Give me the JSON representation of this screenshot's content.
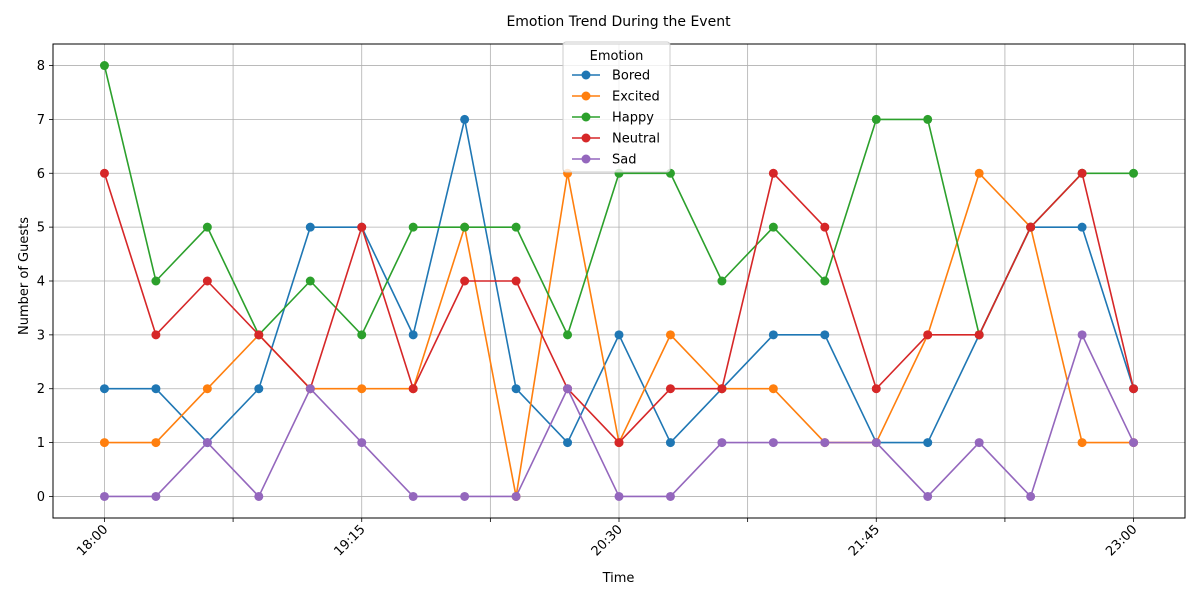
{
  "chart_data": {
    "type": "line",
    "title": "Emotion Trend During the Event",
    "xlabel": "Time",
    "ylabel": "Number of Guests",
    "x": [
      "18:00",
      "18:15",
      "18:30",
      "18:45",
      "19:00",
      "19:15",
      "19:30",
      "19:45",
      "20:00",
      "20:15",
      "20:30",
      "20:45",
      "21:00",
      "21:15",
      "21:30",
      "21:45",
      "22:00",
      "22:15",
      "22:30",
      "22:45",
      "23:00"
    ],
    "x_tick_labels": [
      "18:00",
      "",
      "19:15",
      "",
      "20:30",
      "",
      "21:45",
      "",
      "23:00"
    ],
    "x_tick_positions": [
      "18:00",
      "18:37.5",
      "19:15",
      "19:52.5",
      "20:30",
      "21:07.5",
      "21:45",
      "22:22.5",
      "23:00"
    ],
    "y_ticks": [
      0,
      1,
      2,
      3,
      4,
      5,
      6,
      7,
      8
    ],
    "ylim": [
      -0.4,
      8.4
    ],
    "grid": true,
    "legend_title": "Emotion",
    "legend_position": "top-center",
    "series": [
      {
        "name": "Bored",
        "color": "#1f77b4",
        "values": [
          2,
          2,
          1,
          2,
          5,
          5,
          3,
          7,
          2,
          1,
          3,
          1,
          2,
          3,
          3,
          1,
          1,
          3,
          5,
          5,
          2
        ]
      },
      {
        "name": "Excited",
        "color": "#ff7f0e",
        "values": [
          1,
          1,
          2,
          3,
          2,
          2,
          2,
          5,
          0,
          6,
          1,
          3,
          2,
          2,
          1,
          1,
          3,
          6,
          5,
          1,
          1
        ]
      },
      {
        "name": "Happy",
        "color": "#2ca02c",
        "values": [
          8,
          4,
          5,
          3,
          4,
          3,
          5,
          5,
          5,
          3,
          6,
          6,
          4,
          5,
          4,
          7,
          7,
          3,
          5,
          6,
          6
        ]
      },
      {
        "name": "Neutral",
        "color": "#d62728",
        "values": [
          6,
          3,
          4,
          3,
          2,
          5,
          2,
          4,
          4,
          2,
          1,
          2,
          2,
          6,
          5,
          2,
          3,
          3,
          5,
          6,
          2
        ]
      },
      {
        "name": "Sad",
        "color": "#9467bd",
        "values": [
          0,
          0,
          1,
          0,
          2,
          1,
          0,
          0,
          0,
          2,
          0,
          0,
          1,
          1,
          1,
          1,
          0,
          1,
          0,
          3,
          1
        ]
      }
    ]
  }
}
